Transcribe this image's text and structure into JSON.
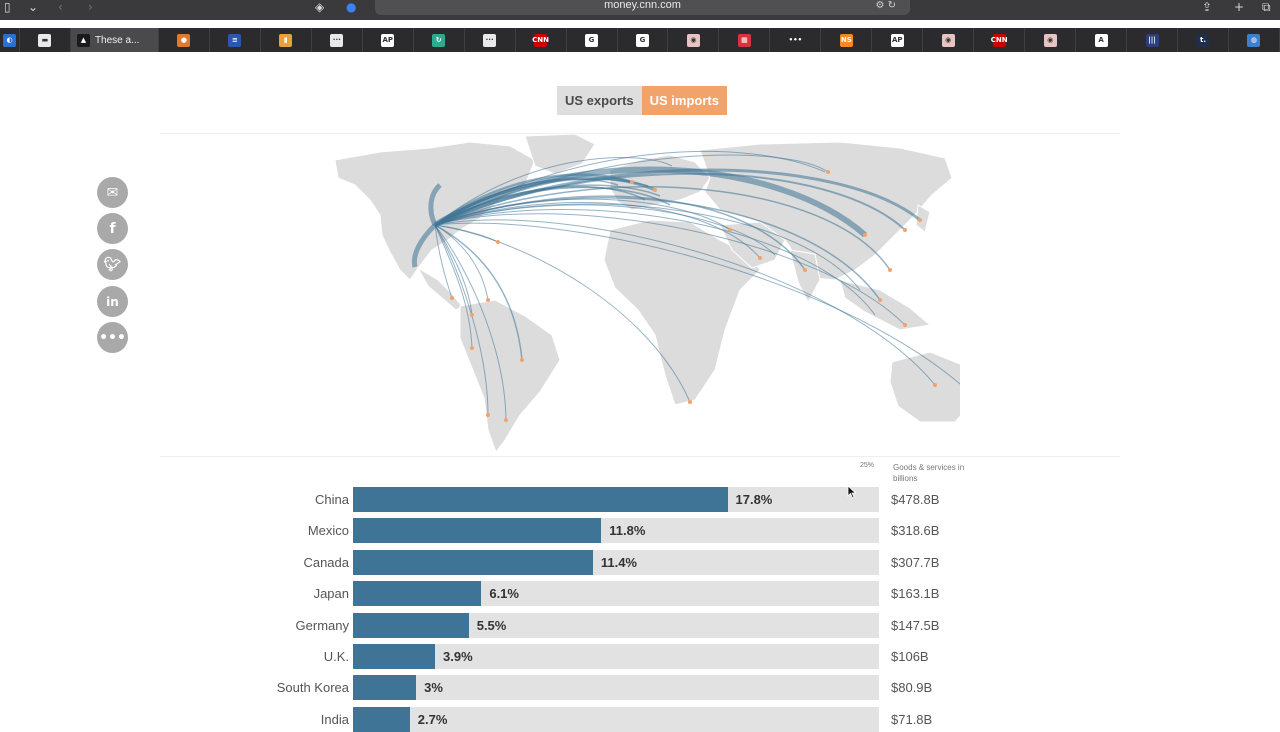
{
  "browser": {
    "url": "money.cnn.com",
    "active_tab_title": "These a...",
    "tabs": [
      {
        "icon": "blue-circle-icon",
        "color": "#2a6fd6",
        "mark": "◐"
      },
      {
        "icon": "white-square-icon",
        "color": "#e9e9e9",
        "mark": "▬"
      },
      {
        "icon": "active-tab-favicon-icon",
        "color": "#1a1a1a",
        "mark": "▲"
      },
      {
        "icon": "orange-ball-icon",
        "color": "#e07a2e",
        "mark": "●"
      },
      {
        "icon": "blue-news-icon",
        "color": "#2a58b0",
        "mark": "≡"
      },
      {
        "icon": "orange-square-icon",
        "color": "#e8a23a",
        "mark": "▮"
      },
      {
        "icon": "dots-icon",
        "color": "#e9e9e9",
        "mark": "···"
      },
      {
        "icon": "ap-icon",
        "color": "#ffffff",
        "mark": "AP"
      },
      {
        "icon": "green-refresh-icon",
        "color": "#2eaa8e",
        "mark": "↻"
      },
      {
        "icon": "dots-icon",
        "color": "#e9e9e9",
        "mark": "···"
      },
      {
        "icon": "cnn-icon",
        "color": "#cc0000",
        "mark": "CNN"
      },
      {
        "icon": "google-icon",
        "color": "#ffffff",
        "mark": "G"
      },
      {
        "icon": "google-icon",
        "color": "#ffffff",
        "mark": "G"
      },
      {
        "icon": "pink-circle-icon",
        "color": "#e8c3c3",
        "mark": "◉"
      },
      {
        "icon": "red-calendar-icon",
        "color": "#d8333a",
        "mark": "▦"
      },
      {
        "icon": "multi-dot-icon",
        "color": "#2b2b2d",
        "mark": "•••"
      },
      {
        "icon": "orange-ns-icon",
        "color": "#f08a24",
        "mark": "NS"
      },
      {
        "icon": "ap-icon",
        "color": "#ffffff",
        "mark": "AP"
      },
      {
        "icon": "pink-circle-icon",
        "color": "#e8c3c3",
        "mark": "◉"
      },
      {
        "icon": "cnn-icon",
        "color": "#cc0000",
        "mark": "CNN"
      },
      {
        "icon": "pink-circle-icon",
        "color": "#e8c3c3",
        "mark": "◉"
      },
      {
        "icon": "red-a-icon",
        "color": "#ffffff",
        "mark": "A"
      },
      {
        "icon": "blue-bars-icon",
        "color": "#2a3f7a",
        "mark": "|||"
      },
      {
        "icon": "t-icon",
        "color": "#1f2f4a",
        "mark": "t."
      },
      {
        "icon": "blue-globe-icon",
        "color": "#3a7fd0",
        "mark": "◍"
      }
    ]
  },
  "toggle": {
    "exports_label": "US exports",
    "imports_label": "US imports",
    "selected": "imports",
    "accent": "#f2a36b"
  },
  "share": [
    "email-icon",
    "facebook-icon",
    "twitter-icon",
    "linkedin-icon",
    "more-icon"
  ],
  "legend": {
    "scale_max": "25%",
    "unit_label": "Goods & services in billions"
  },
  "chart_data": {
    "type": "bar",
    "orientation": "horizontal",
    "xlim": [
      0,
      25
    ],
    "bar_color": "#3f7496",
    "track_color": "#e2e2e2",
    "rows": [
      {
        "country": "China",
        "pct": 17.8,
        "pct_label": "17.8%",
        "value": "$478.8B"
      },
      {
        "country": "Mexico",
        "pct": 11.8,
        "pct_label": "11.8%",
        "value": "$318.6B"
      },
      {
        "country": "Canada",
        "pct": 11.4,
        "pct_label": "11.4%",
        "value": "$307.7B"
      },
      {
        "country": "Japan",
        "pct": 6.1,
        "pct_label": "6.1%",
        "value": "$163.1B"
      },
      {
        "country": "Germany",
        "pct": 5.5,
        "pct_label": "5.5%",
        "value": "$147.5B"
      },
      {
        "country": "U.K.",
        "pct": 3.9,
        "pct_label": "3.9%",
        "value": "$106B"
      },
      {
        "country": "South Korea",
        "pct": 3.0,
        "pct_label": "3%",
        "value": "$80.9B"
      },
      {
        "country": "India",
        "pct": 2.7,
        "pct_label": "2.7%",
        "value": "$71.8B"
      }
    ]
  }
}
